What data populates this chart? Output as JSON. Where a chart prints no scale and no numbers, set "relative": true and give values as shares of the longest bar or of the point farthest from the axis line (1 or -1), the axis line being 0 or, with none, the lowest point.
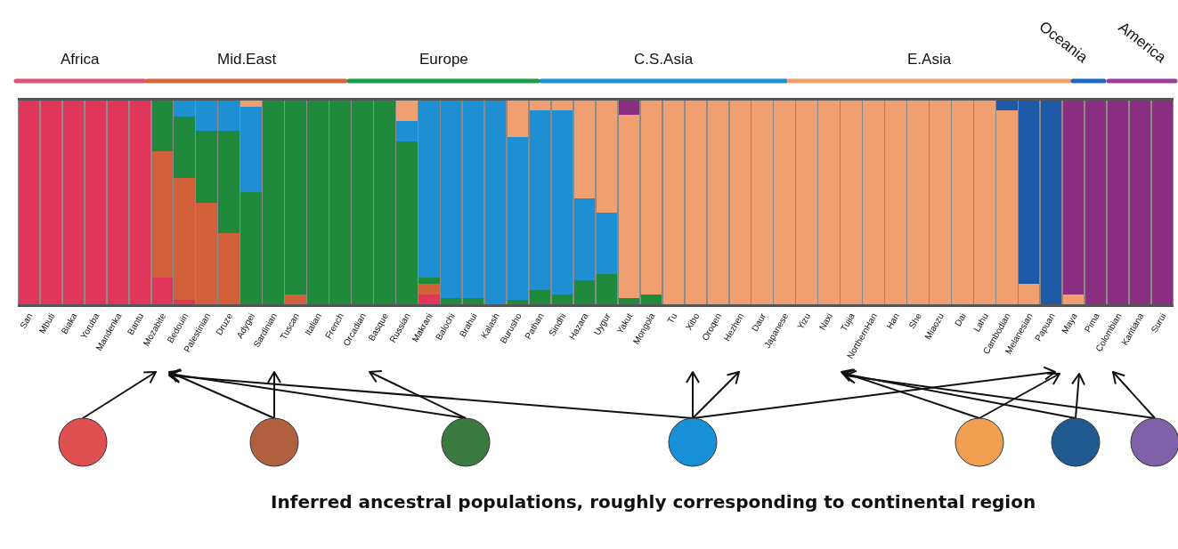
{
  "chart_data": {
    "type": "bar",
    "stacked": true,
    "relative": true,
    "categories": [
      "San",
      "Mbuti",
      "Biaka",
      "Yoruba",
      "Mandenka",
      "Bantu",
      "Mozabite",
      "Bedouin",
      "Palestinian",
      "Druze",
      "Adygei",
      "Sardinian",
      "Tuscan",
      "Italian",
      "French",
      "Orcadian",
      "Basque",
      "Russian",
      "Makrani",
      "Balochi",
      "Brahui",
      "Kalash",
      "Burusho",
      "Pathan",
      "Sindhi",
      "Hazara",
      "Uygur",
      "Yakut",
      "Mongola",
      "Tu",
      "Xibo",
      "Oroqen",
      "Hezhen",
      "Daur",
      "Japanese",
      "Yizu",
      "Naxi",
      "Tujia",
      "NorthernHan",
      "Han",
      "She",
      "Miaozu",
      "Dai",
      "Lahu",
      "Cambodian",
      "Melanesian",
      "Papuan",
      "Maya",
      "Pima",
      "Colombian",
      "Karitiana",
      "Surui"
    ],
    "series": [
      {
        "color": "#e0365a",
        "values": [
          1,
          1,
          1,
          1,
          1,
          1,
          0.13,
          0.02,
          0,
          0,
          0,
          0,
          0,
          0,
          0,
          0,
          0,
          0,
          0.05,
          0,
          0,
          0,
          0,
          0,
          0,
          0,
          0,
          0,
          0,
          0,
          0,
          0,
          0,
          0,
          0,
          0,
          0,
          0,
          0,
          0,
          0,
          0,
          0,
          0,
          0,
          0,
          0,
          0,
          0,
          0,
          0,
          0
        ]
      },
      {
        "color": "#d2603a",
        "values": [
          0,
          0,
          0,
          0,
          0,
          0,
          0.62,
          0.6,
          0.5,
          0.35,
          0,
          0,
          0.05,
          0,
          0,
          0,
          0,
          0,
          0.05,
          0,
          0,
          0,
          0,
          0,
          0,
          0,
          0,
          0,
          0,
          0,
          0,
          0,
          0,
          0,
          0,
          0,
          0,
          0,
          0,
          0,
          0,
          0,
          0,
          0,
          0,
          0,
          0,
          0,
          0,
          0,
          0,
          0
        ]
      },
      {
        "color": "#1f8a3c",
        "values": [
          0,
          0,
          0,
          0,
          0,
          0,
          0.25,
          0.3,
          0.35,
          0.5,
          0.55,
          1,
          0.95,
          1,
          1,
          1,
          1,
          0.8,
          0.03,
          0.03,
          0.03,
          0,
          0.02,
          0.07,
          0.05,
          0.12,
          0.15,
          0.03,
          0.05,
          0,
          0,
          0,
          0,
          0,
          0,
          0,
          0,
          0,
          0,
          0,
          0,
          0,
          0,
          0,
          0,
          0,
          0,
          0,
          0,
          0,
          0,
          0
        ]
      },
      {
        "color": "#1f8fd4",
        "values": [
          0,
          0,
          0,
          0,
          0,
          0,
          0,
          0.08,
          0.15,
          0.15,
          0.42,
          0,
          0,
          0,
          0,
          0,
          0,
          0.1,
          0.87,
          0.97,
          0.97,
          1,
          0.8,
          0.88,
          0.9,
          0.4,
          0.3,
          0,
          0,
          0,
          0,
          0,
          0,
          0,
          0,
          0,
          0,
          0,
          0,
          0,
          0,
          0,
          0,
          0,
          0,
          0,
          0,
          0,
          0,
          0,
          0,
          0
        ]
      },
      {
        "color": "#f0a070",
        "values": [
          0,
          0,
          0,
          0,
          0,
          0,
          0,
          0,
          0,
          0,
          0.03,
          0,
          0,
          0,
          0,
          0,
          0,
          0.1,
          0,
          0,
          0,
          0,
          0.18,
          0.05,
          0.05,
          0.48,
          0.55,
          0.9,
          0.95,
          1,
          1,
          1,
          1,
          1,
          1,
          1,
          1,
          1,
          1,
          1,
          1,
          1,
          1,
          1,
          0.95,
          0.1,
          0,
          0.05,
          0,
          0,
          0,
          0
        ]
      },
      {
        "color": "#1f5aa8",
        "values": [
          0,
          0,
          0,
          0,
          0,
          0,
          0,
          0,
          0,
          0,
          0,
          0,
          0,
          0,
          0,
          0,
          0,
          0,
          0,
          0,
          0,
          0,
          0,
          0,
          0,
          0,
          0,
          0,
          0,
          0,
          0,
          0,
          0,
          0,
          0,
          0,
          0,
          0,
          0,
          0,
          0,
          0,
          0,
          0,
          0.05,
          0.9,
          1,
          0,
          0,
          0,
          0,
          0
        ]
      },
      {
        "color": "#8a2e82",
        "values": [
          0,
          0,
          0,
          0,
          0,
          0,
          0,
          0,
          0,
          0,
          0,
          0,
          0,
          0,
          0,
          0,
          0,
          0,
          0,
          0,
          0,
          0,
          0,
          0,
          0,
          0,
          0,
          0.07,
          0,
          0,
          0,
          0,
          0,
          0,
          0,
          0,
          0,
          0,
          0,
          0,
          0,
          0,
          0,
          0,
          0,
          0,
          0,
          0.95,
          1,
          1,
          1,
          1
        ]
      }
    ],
    "annotations": [
      "Africa",
      "Mid.East",
      "Europe",
      "C.S.Asia",
      "E.Asia",
      "Oceania",
      "America",
      "Inferred ancestral populations, roughly corresponding to continental region"
    ]
  }
}
